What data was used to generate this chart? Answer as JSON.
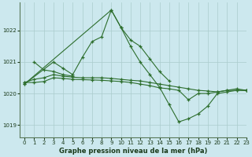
{
  "title": "Graphe pression niveau de la mer (hPa)",
  "background_color": "#cce8ee",
  "grid_color": "#aacccc",
  "line_color": "#2d6e2d",
  "xlim": [
    -0.5,
    23
  ],
  "ylim": [
    1018.6,
    1022.9
  ],
  "yticks": [
    1019,
    1020,
    1021,
    1022
  ],
  "xticks": [
    0,
    1,
    2,
    3,
    4,
    5,
    6,
    7,
    8,
    9,
    10,
    11,
    12,
    13,
    14,
    15,
    16,
    17,
    18,
    19,
    20,
    21,
    22,
    23
  ],
  "series": [
    {
      "x": [
        0,
        3,
        4,
        5,
        6,
        7,
        8,
        9,
        10,
        11,
        12,
        13,
        14,
        15
      ],
      "y": [
        1020.3,
        1021.0,
        1020.8,
        1020.6,
        1021.15,
        1021.65,
        1021.8,
        1022.65,
        1022.1,
        1021.7,
        1021.5,
        1021.1,
        1020.7,
        1020.4
      ]
    },
    {
      "x": [
        0,
        1,
        2,
        3,
        4,
        5,
        6,
        7,
        8,
        9,
        10,
        11,
        12,
        13,
        14,
        15,
        16,
        17,
        18,
        19,
        20,
        21,
        22,
        23
      ],
      "y": [
        1020.35,
        1020.45,
        1020.5,
        1020.6,
        1020.55,
        1020.52,
        1020.5,
        1020.5,
        1020.5,
        1020.48,
        1020.45,
        1020.42,
        1020.4,
        1020.35,
        1020.3,
        1020.25,
        1020.2,
        1020.15,
        1020.1,
        1020.08,
        1020.05,
        1020.1,
        1020.15,
        1020.1
      ]
    },
    {
      "x": [
        0,
        9,
        10,
        11,
        12,
        13,
        14,
        15,
        16,
        17,
        18,
        19,
        20,
        21,
        22,
        23
      ],
      "y": [
        1020.3,
        1022.65,
        1022.1,
        1021.5,
        1021.0,
        1020.6,
        1020.2,
        1019.65,
        1019.1,
        1019.2,
        1019.35,
        1019.6,
        1020.0,
        1020.05,
        1020.1,
        1020.1
      ]
    },
    {
      "x": [
        0,
        1,
        2,
        3,
        4,
        5,
        6,
        7,
        8,
        9,
        10,
        11,
        12,
        13,
        14,
        15,
        16,
        17,
        18,
        19,
        20,
        21,
        22,
        23
      ],
      "y": [
        1020.35,
        1020.35,
        1020.38,
        1020.5,
        1020.48,
        1020.45,
        1020.44,
        1020.43,
        1020.42,
        1020.4,
        1020.38,
        1020.35,
        1020.3,
        1020.25,
        1020.18,
        1020.15,
        1020.1,
        1019.8,
        1020.0,
        1020.0,
        1020.05,
        1020.1,
        1020.1,
        1020.1
      ]
    },
    {
      "x": [
        1,
        2,
        3,
        4,
        5
      ],
      "y": [
        1021.0,
        1020.75,
        1020.7,
        1020.6,
        1020.55
      ]
    }
  ]
}
